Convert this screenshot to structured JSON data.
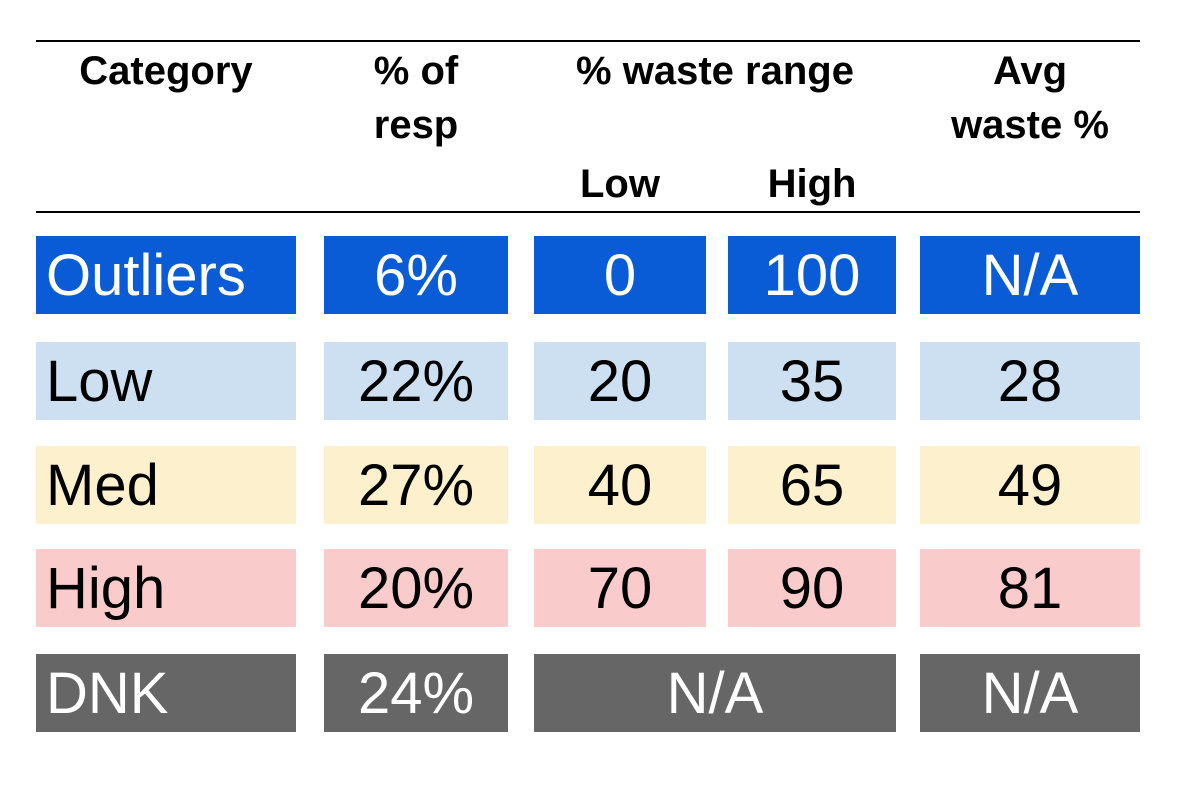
{
  "chart_data": {
    "type": "table",
    "header": {
      "category": "Category",
      "pct_resp_line1": "% of",
      "pct_resp_line2": "resp",
      "range_group": "% waste range",
      "range_low": "Low",
      "range_high": "High",
      "avg_line1": "Avg",
      "avg_line2": "waste %"
    },
    "rows": [
      {
        "category": "Outliers",
        "pct_resp": "6%",
        "low": "0",
        "high": "100",
        "avg": "N/A",
        "fill": "#0a5bd6",
        "text_color": "#ffffff"
      },
      {
        "category": "Low",
        "pct_resp": "22%",
        "low": "20",
        "high": "35",
        "avg": "28",
        "fill": "#cde0f2",
        "text_color": "#000000"
      },
      {
        "category": "Med",
        "pct_resp": "27%",
        "low": "40",
        "high": "65",
        "avg": "49",
        "fill": "#fdf0cc",
        "text_color": "#000000"
      },
      {
        "category": "High",
        "pct_resp": "20%",
        "low": "70",
        "high": "90",
        "avg": "81",
        "fill": "#f9cbcb",
        "text_color": "#000000"
      },
      {
        "category": "DNK",
        "pct_resp": "24%",
        "range": "N/A",
        "avg": "N/A",
        "fill": "#666666",
        "text_color": "#ffffff"
      }
    ]
  }
}
